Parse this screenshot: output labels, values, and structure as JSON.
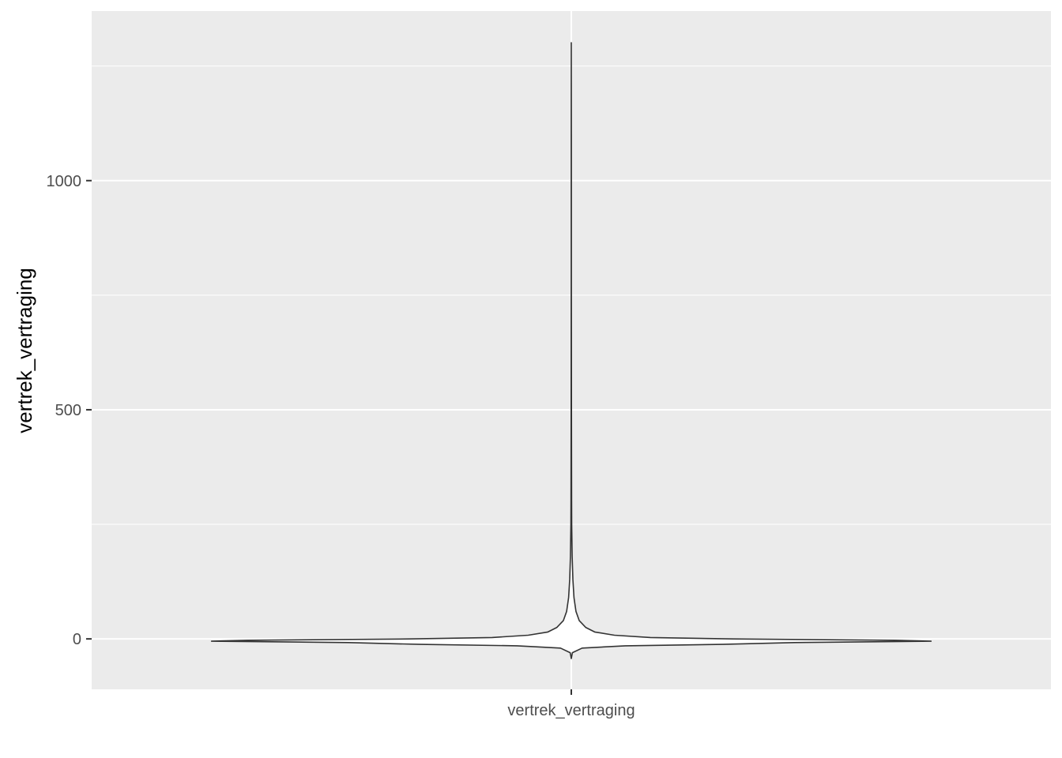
{
  "chart_data": {
    "type": "violin",
    "categories": [
      "vertrek_vertraging"
    ],
    "xlabel": "",
    "ylabel": "vertrek_vertraging",
    "ylim": [
      -110,
      1370
    ],
    "y_ticks": [
      0,
      500,
      1000
    ],
    "y_tick_labels": [
      "0",
      "500",
      "1000"
    ],
    "grid": true,
    "panel_background": "#ebebeb",
    "grid_color": "#ffffff",
    "violin_fill": "#ffffff",
    "violin_stroke": "#333333",
    "series": [
      {
        "category": "vertrek_vertraging",
        "min": -43,
        "max": 1301,
        "density_profile": [
          {
            "y": -43,
            "w": 0.0
          },
          {
            "y": -30,
            "w": 0.003
          },
          {
            "y": -20,
            "w": 0.03
          },
          {
            "y": -15,
            "w": 0.15
          },
          {
            "y": -12,
            "w": 0.42
          },
          {
            "y": -8,
            "w": 0.62
          },
          {
            "y": -5,
            "w": 1.0
          },
          {
            "y": -3,
            "w": 0.9
          },
          {
            "y": 0,
            "w": 0.45
          },
          {
            "y": 3,
            "w": 0.22
          },
          {
            "y": 8,
            "w": 0.12
          },
          {
            "y": 15,
            "w": 0.065
          },
          {
            "y": 25,
            "w": 0.04
          },
          {
            "y": 40,
            "w": 0.022
          },
          {
            "y": 60,
            "w": 0.013
          },
          {
            "y": 90,
            "w": 0.0075
          },
          {
            "y": 130,
            "w": 0.0045
          },
          {
            "y": 180,
            "w": 0.0025
          },
          {
            "y": 250,
            "w": 0.0012
          },
          {
            "y": 300,
            "w": 0.0008
          },
          {
            "y": 500,
            "w": 0.0004
          },
          {
            "y": 800,
            "w": 0.0003
          },
          {
            "y": 1100,
            "w": 0.0002
          },
          {
            "y": 1301,
            "w": 0.0
          }
        ]
      }
    ]
  }
}
